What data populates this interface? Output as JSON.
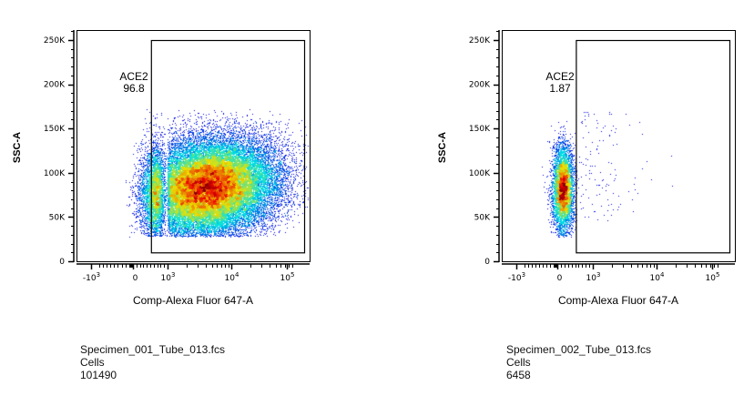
{
  "chart_data": [
    {
      "type": "scatter",
      "subtype": "flow-cytometry density dot plot",
      "xlabel": "Comp-Alexa Fluor 647-A",
      "ylabel": "SSC-A",
      "x_scale": "biexponential",
      "x_ticks": [
        {
          "value": -1000,
          "base": "-10",
          "exp": "3"
        },
        {
          "value": 0,
          "base": "0",
          "exp": ""
        },
        {
          "value": 1000,
          "base": "10",
          "exp": "3"
        },
        {
          "value": 10000,
          "base": "10",
          "exp": "4"
        },
        {
          "value": 100000,
          "base": "10",
          "exp": "5"
        }
      ],
      "y_ticks": [
        {
          "value": 0,
          "label": "0"
        },
        {
          "value": 50000,
          "label": "50K"
        },
        {
          "value": 100000,
          "label": "100K"
        },
        {
          "value": 150000,
          "label": "150K"
        },
        {
          "value": 200000,
          "label": "200K"
        },
        {
          "value": 250000,
          "label": "250K"
        }
      ],
      "ylim": [
        0,
        262144
      ],
      "gate": {
        "name": "ACE2",
        "percent": "96.8",
        "x_min": 600,
        "x_max": 200000,
        "y_min": 10000,
        "y_max": 250000
      },
      "population": {
        "center_x": 10000,
        "center_y": 85000,
        "y_range": [
          28000,
          172000
        ]
      },
      "specimen": "Specimen_001_Tube_013.fcs",
      "parent": "Cells",
      "events": "101490"
    },
    {
      "type": "scatter",
      "subtype": "flow-cytometry density dot plot",
      "xlabel": "Comp-Alexa Fluor 647-A",
      "ylabel": "SSC-A",
      "x_scale": "biexponential",
      "x_ticks": [
        {
          "value": -1000,
          "base": "-10",
          "exp": "3"
        },
        {
          "value": 0,
          "base": "0",
          "exp": ""
        },
        {
          "value": 1000,
          "base": "10",
          "exp": "3"
        },
        {
          "value": 10000,
          "base": "10",
          "exp": "4"
        },
        {
          "value": 100000,
          "base": "10",
          "exp": "5"
        }
      ],
      "y_ticks": [
        {
          "value": 0,
          "label": "0"
        },
        {
          "value": 50000,
          "label": "50K"
        },
        {
          "value": 100000,
          "label": "100K"
        },
        {
          "value": 150000,
          "label": "150K"
        },
        {
          "value": 200000,
          "label": "200K"
        },
        {
          "value": 250000,
          "label": "250K"
        }
      ],
      "ylim": [
        0,
        262144
      ],
      "gate": {
        "name": "ACE2",
        "percent": "1.87",
        "x_min": 600,
        "x_max": 200000,
        "y_min": 10000,
        "y_max": 250000
      },
      "population": {
        "center_x": 150,
        "center_y": 82000,
        "y_range": [
          28000,
          172000
        ]
      },
      "specimen": "Specimen_002_Tube_013.fcs",
      "parent": "Cells",
      "events": "6458"
    }
  ],
  "colors": {
    "axis": "#000000",
    "low": "#00008f",
    "high": "#b00000"
  }
}
